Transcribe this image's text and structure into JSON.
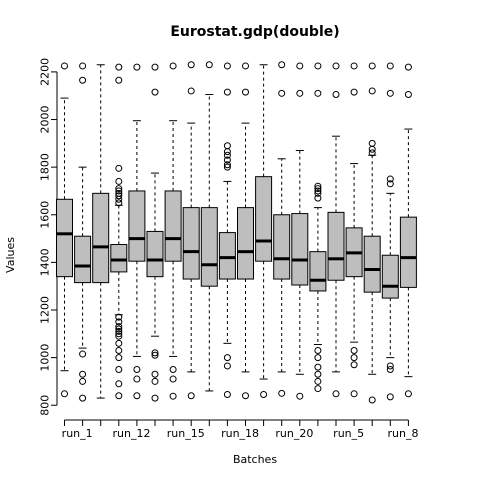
{
  "chart_data": {
    "type": "box",
    "title": "Eurostat.gdp(double)",
    "xlabel": "Batches",
    "ylabel": "Values",
    "ylim": [
      780,
      2250
    ],
    "yticks": [
      800,
      1000,
      1200,
      1400,
      1600,
      1800,
      2000,
      2200
    ],
    "grid": false,
    "xtick_labels": [
      "run_1",
      "run_12",
      "run_15",
      "run_18",
      "run_20",
      "run_5",
      "run_8"
    ],
    "box_fill": "#bebebe",
    "boxes": [
      {
        "q1": 1340,
        "median": 1520,
        "q3": 1665,
        "whisker_low": 945,
        "whisker_high": 2090,
        "outliers": [
          848,
          2225
        ]
      },
      {
        "q1": 1315,
        "median": 1385,
        "q3": 1510,
        "whisker_low": 1040,
        "whisker_high": 1800,
        "outliers": [
          830,
          900,
          930,
          1015,
          2165,
          2225
        ]
      },
      {
        "q1": 1315,
        "median": 1465,
        "q3": 1690,
        "whisker_low": 830,
        "whisker_high": 2230,
        "outliers": []
      },
      {
        "q1": 1360,
        "median": 1410,
        "q3": 1475,
        "whisker_low": 1180,
        "whisker_high": 1640,
        "outliers": [
          840,
          890,
          950,
          1000,
          1030,
          1060,
          1090,
          1100,
          1110,
          1120,
          1130,
          1150,
          1170,
          1650,
          1665,
          1680,
          1690,
          1700,
          1710,
          1740,
          1795,
          2165,
          2220
        ]
      },
      {
        "q1": 1405,
        "median": 1500,
        "q3": 1700,
        "whisker_low": 1005,
        "whisker_high": 1995,
        "outliers": [
          840,
          910,
          950,
          2220
        ]
      },
      {
        "q1": 1340,
        "median": 1410,
        "q3": 1530,
        "whisker_low": 1090,
        "whisker_high": 1775,
        "outliers": [
          830,
          900,
          930,
          1010,
          1020,
          2115,
          2220
        ]
      },
      {
        "q1": 1405,
        "median": 1500,
        "q3": 1700,
        "whisker_low": 1005,
        "whisker_high": 1995,
        "outliers": [
          838,
          910,
          950,
          2225
        ]
      },
      {
        "q1": 1330,
        "median": 1445,
        "q3": 1630,
        "whisker_low": 940,
        "whisker_high": 1985,
        "outliers": [
          840,
          2120,
          2230
        ]
      },
      {
        "q1": 1300,
        "median": 1390,
        "q3": 1630,
        "whisker_low": 860,
        "whisker_high": 2105,
        "outliers": [
          2230
        ]
      },
      {
        "q1": 1330,
        "median": 1420,
        "q3": 1525,
        "whisker_low": 1060,
        "whisker_high": 1740,
        "outliers": [
          845,
          965,
          1000,
          1800,
          1810,
          1830,
          1850,
          1865,
          1890,
          2115,
          2225
        ]
      },
      {
        "q1": 1330,
        "median": 1445,
        "q3": 1630,
        "whisker_low": 940,
        "whisker_high": 1985,
        "outliers": [
          840,
          2115,
          2225
        ]
      },
      {
        "q1": 1405,
        "median": 1490,
        "q3": 1760,
        "whisker_low": 910,
        "whisker_high": 2230,
        "outliers": [
          845
        ]
      },
      {
        "q1": 1330,
        "median": 1415,
        "q3": 1600,
        "whisker_low": 940,
        "whisker_high": 1835,
        "outliers": [
          850,
          2110,
          2230
        ]
      },
      {
        "q1": 1305,
        "median": 1410,
        "q3": 1605,
        "whisker_low": 930,
        "whisker_high": 1870,
        "outliers": [
          838,
          2110,
          2225
        ]
      },
      {
        "q1": 1280,
        "median": 1325,
        "q3": 1445,
        "whisker_low": 1055,
        "whisker_high": 1630,
        "outliers": [
          870,
          900,
          930,
          960,
          1000,
          1030,
          1670,
          1690,
          1700,
          1710,
          1720,
          2110,
          2225
        ]
      },
      {
        "q1": 1325,
        "median": 1415,
        "q3": 1610,
        "whisker_low": 940,
        "whisker_high": 1930,
        "outliers": [
          848,
          2105,
          2225
        ]
      },
      {
        "q1": 1340,
        "median": 1440,
        "q3": 1545,
        "whisker_low": 1065,
        "whisker_high": 1815,
        "outliers": [
          848,
          970,
          1000,
          1030,
          2115,
          2225
        ]
      },
      {
        "q1": 1275,
        "median": 1370,
        "q3": 1510,
        "whisker_low": 930,
        "whisker_high": 1850,
        "outliers": [
          822,
          1860,
          1875,
          1900,
          2120,
          2225
        ]
      },
      {
        "q1": 1250,
        "median": 1300,
        "q3": 1430,
        "whisker_low": 1000,
        "whisker_high": 1690,
        "outliers": [
          835,
          950,
          965,
          1730,
          1750,
          2110,
          2225
        ]
      },
      {
        "q1": 1295,
        "median": 1420,
        "q3": 1590,
        "whisker_low": 920,
        "whisker_high": 1960,
        "outliers": [
          848,
          2105,
          2220
        ]
      }
    ]
  }
}
